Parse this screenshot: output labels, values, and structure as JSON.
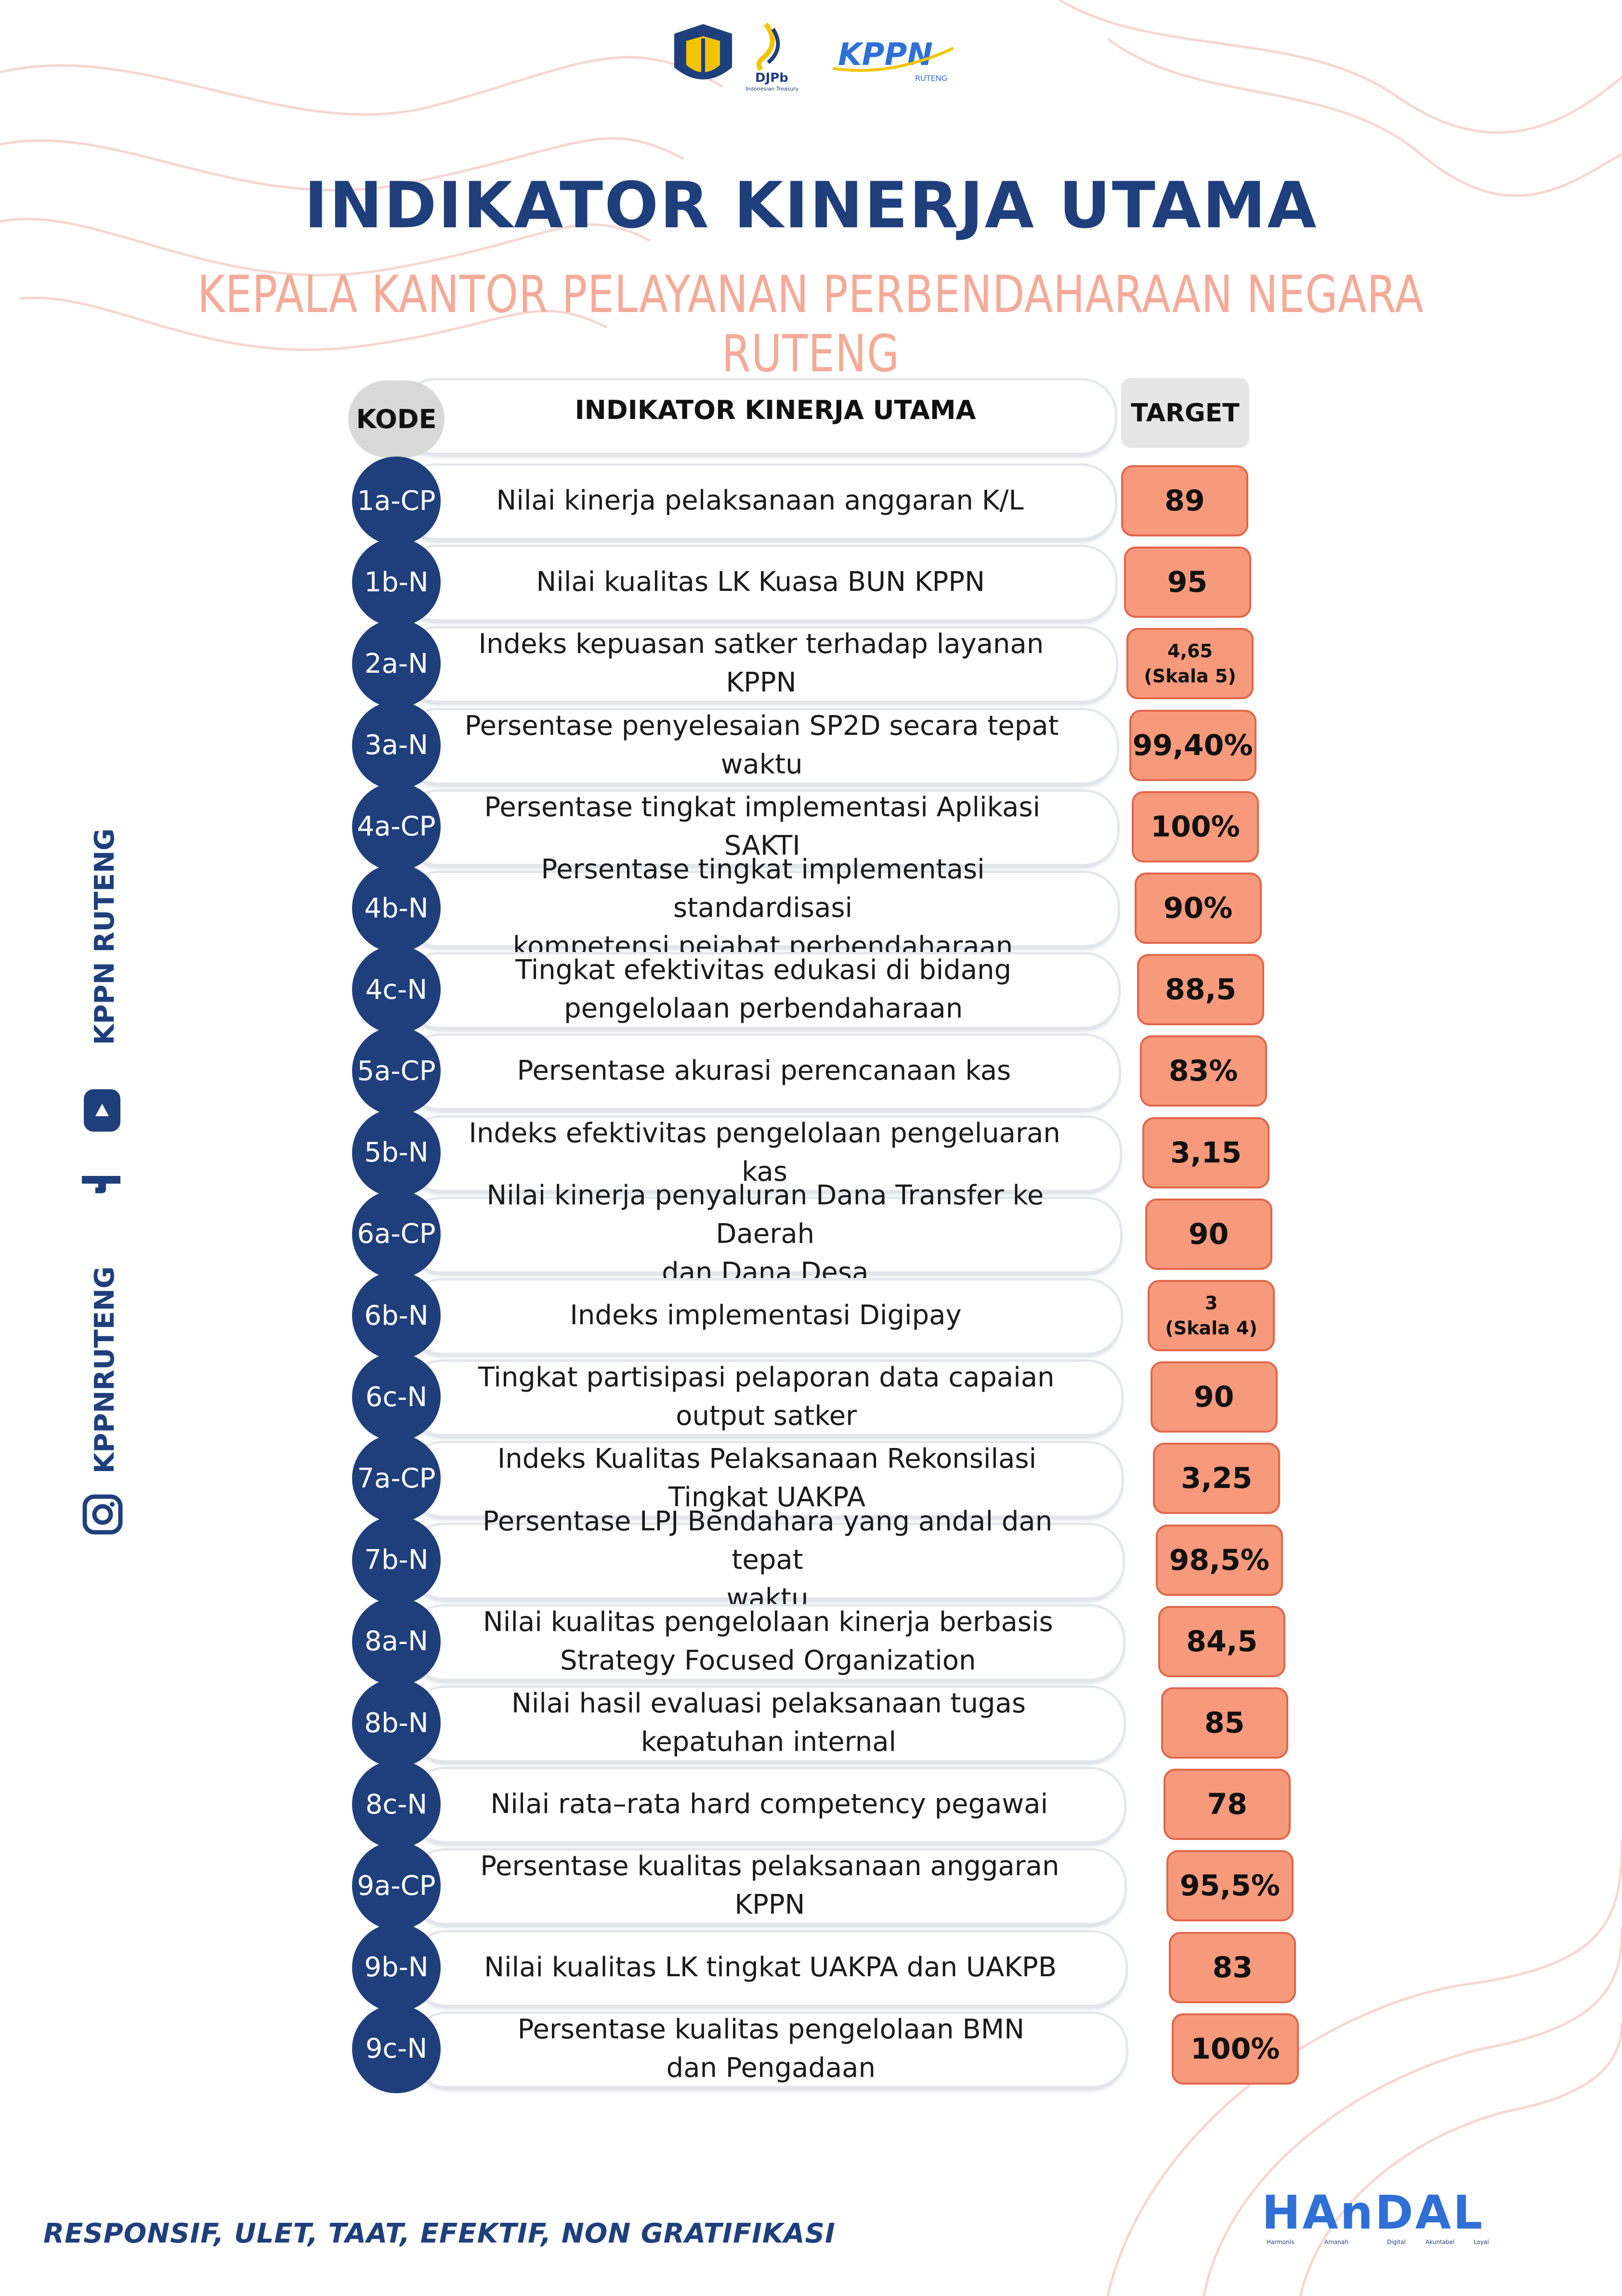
{
  "header": {
    "djpb_label": "DJPb",
    "djpb_sub": "Indonesian Treasury",
    "kppn_label": "KPPN",
    "kppn_sub": "RUTENG",
    "title": "INDIKATOR KINERJA UTAMA",
    "subtitle": "KEPALA KANTOR PELAYANAN PERBENDAHARAAN NEGARA RUTENG"
  },
  "table": {
    "col_kode": "KODE",
    "col_indikator": "INDIKATOR KINERJA UTAMA",
    "col_target": "TARGET",
    "rows": [
      {
        "kode": "1a-CP",
        "indikator": [
          "Nilai kinerja pelaksanaan anggaran K/L"
        ],
        "target": [
          "89"
        ]
      },
      {
        "kode": "1b-N",
        "indikator": [
          "Nilai kualitas LK Kuasa BUN KPPN"
        ],
        "target": [
          "95"
        ]
      },
      {
        "kode": "2a-N",
        "indikator": [
          "Indeks kepuasan satker terhadap layanan KPPN"
        ],
        "target": [
          "4,65",
          "(Skala 5)"
        ]
      },
      {
        "kode": "3a-N",
        "indikator": [
          "Persentase penyelesaian SP2D secara tepat waktu"
        ],
        "target": [
          "99,40%"
        ]
      },
      {
        "kode": "4a-CP",
        "indikator": [
          "Persentase tingkat implementasi Aplikasi SAKTI"
        ],
        "target": [
          "100%"
        ]
      },
      {
        "kode": "4b-N",
        "indikator": [
          "Persentase tingkat implementasi standardisasi",
          "kompetensi pejabat perbendaharaan"
        ],
        "target": [
          "90%"
        ]
      },
      {
        "kode": "4c-N",
        "indikator": [
          "Tingkat efektivitas edukasi di bidang",
          "pengelolaan perbendaharaan"
        ],
        "target": [
          "88,5"
        ]
      },
      {
        "kode": "5a-CP",
        "indikator": [
          "Persentase akurasi perencanaan kas"
        ],
        "target": [
          "83%"
        ]
      },
      {
        "kode": "5b-N",
        "indikator": [
          "Indeks efektivitas pengelolaan pengeluaran",
          "kas"
        ],
        "target": [
          "3,15"
        ]
      },
      {
        "kode": "6a-CP",
        "indikator": [
          "Nilai kinerja penyaluran Dana Transfer ke Daerah",
          "dan Dana Desa"
        ],
        "target": [
          "90"
        ]
      },
      {
        "kode": "6b-N",
        "indikator": [
          "Indeks implementasi Digipay"
        ],
        "target": [
          "3",
          "(Skala 4)"
        ]
      },
      {
        "kode": "6c-N",
        "indikator": [
          "Tingkat partisipasi pelaporan data capaian",
          "output satker"
        ],
        "target": [
          "90"
        ]
      },
      {
        "kode": "7a-CP",
        "indikator": [
          "Indeks Kualitas Pelaksanaan Rekonsilasi",
          "Tingkat UAKPA"
        ],
        "target": [
          "3,25"
        ]
      },
      {
        "kode": "7b-N",
        "indikator": [
          "Persentase LPJ Bendahara yang andal dan tepat",
          "waktu"
        ],
        "target": [
          "98,5%"
        ]
      },
      {
        "kode": "8a-N",
        "indikator": [
          "Nilai kualitas pengelolaan kinerja berbasis",
          "Strategy Focused Organization"
        ],
        "target": [
          "84,5"
        ]
      },
      {
        "kode": "8b-N",
        "indikator": [
          "Nilai hasil evaluasi pelaksanaan tugas",
          "kepatuhan internal"
        ],
        "target": [
          "85"
        ]
      },
      {
        "kode": "8c-N",
        "indikator": [
          "Nilai rata–rata hard competency pegawai"
        ],
        "target": [
          "78"
        ]
      },
      {
        "kode": "9a-CP",
        "indikator": [
          "Persentase kualitas pelaksanaan anggaran",
          "KPPN"
        ],
        "target": [
          "95,5%"
        ]
      },
      {
        "kode": "9b-N",
        "indikator": [
          "Nilai kualitas LK tingkat UAKPA dan UAKPB"
        ],
        "target": [
          "83"
        ]
      },
      {
        "kode": "9c-N",
        "indikator": [
          "Persentase kualitas pengelolaan BMN",
          "dan Pengadaan"
        ],
        "target": [
          "100%"
        ]
      }
    ]
  },
  "sidebar": {
    "top_handle": "KPPN RUTENG",
    "bottom_handle": "KPPNRUTENG",
    "icons": [
      "youtube-icon",
      "facebook-icon",
      "instagram-icon"
    ]
  },
  "footer": {
    "values": "RESPONSIF, ULET, TAAT, EFEKTIF, NON GRATIFIKASI",
    "handal_logo": "HAnDAL",
    "handal_words": [
      "Harmonis",
      "Amanah",
      "Digital",
      "Akuntabel",
      "Loyal"
    ]
  },
  "colors": {
    "navy": "#1e3f7c",
    "salmon": "#f79a7b",
    "salmon_border": "#e0664a",
    "subtitle_pink": "#f4aa98",
    "kppn_blue": "#2f6fd6",
    "kppn_yellow": "#f2c500"
  }
}
